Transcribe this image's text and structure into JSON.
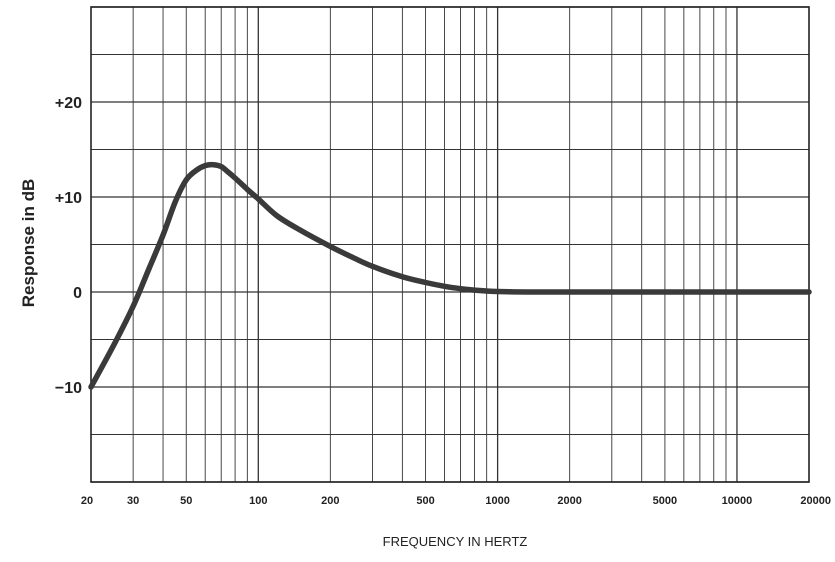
{
  "chart_data": {
    "type": "line",
    "title": "",
    "xlabel": "FREQUENCY IN HERTZ",
    "ylabel": "Response in dB",
    "x_scale": "log",
    "xlim": [
      20,
      20000
    ],
    "ylim": [
      -20,
      30
    ],
    "grid": true,
    "x_tick_labels": [
      "20",
      "30",
      "50",
      "100",
      "200",
      "500",
      "1000",
      "2000",
      "5000",
      "10000",
      "20000"
    ],
    "y_tick_labels": [
      "+20",
      "+10",
      "0",
      "−10"
    ],
    "series": [
      {
        "color": "#3a3a3a",
        "x": [
          20,
          25,
          30,
          35,
          40,
          45,
          50,
          55,
          60,
          65,
          70,
          75,
          80,
          90,
          100,
          120,
          150,
          200,
          250,
          300,
          400,
          500,
          600,
          700,
          800,
          1000,
          1500,
          2000,
          5000,
          10000,
          20000
        ],
        "y": [
          -10,
          -5.5,
          -1.5,
          2.5,
          6,
          9.5,
          11.8,
          12.8,
          13.3,
          13.4,
          13.2,
          12.6,
          12,
          10.8,
          9.8,
          8,
          6.5,
          4.8,
          3.6,
          2.7,
          1.6,
          1,
          0.6,
          0.35,
          0.2,
          0.05,
          0,
          0,
          0,
          0,
          0
        ]
      }
    ]
  }
}
